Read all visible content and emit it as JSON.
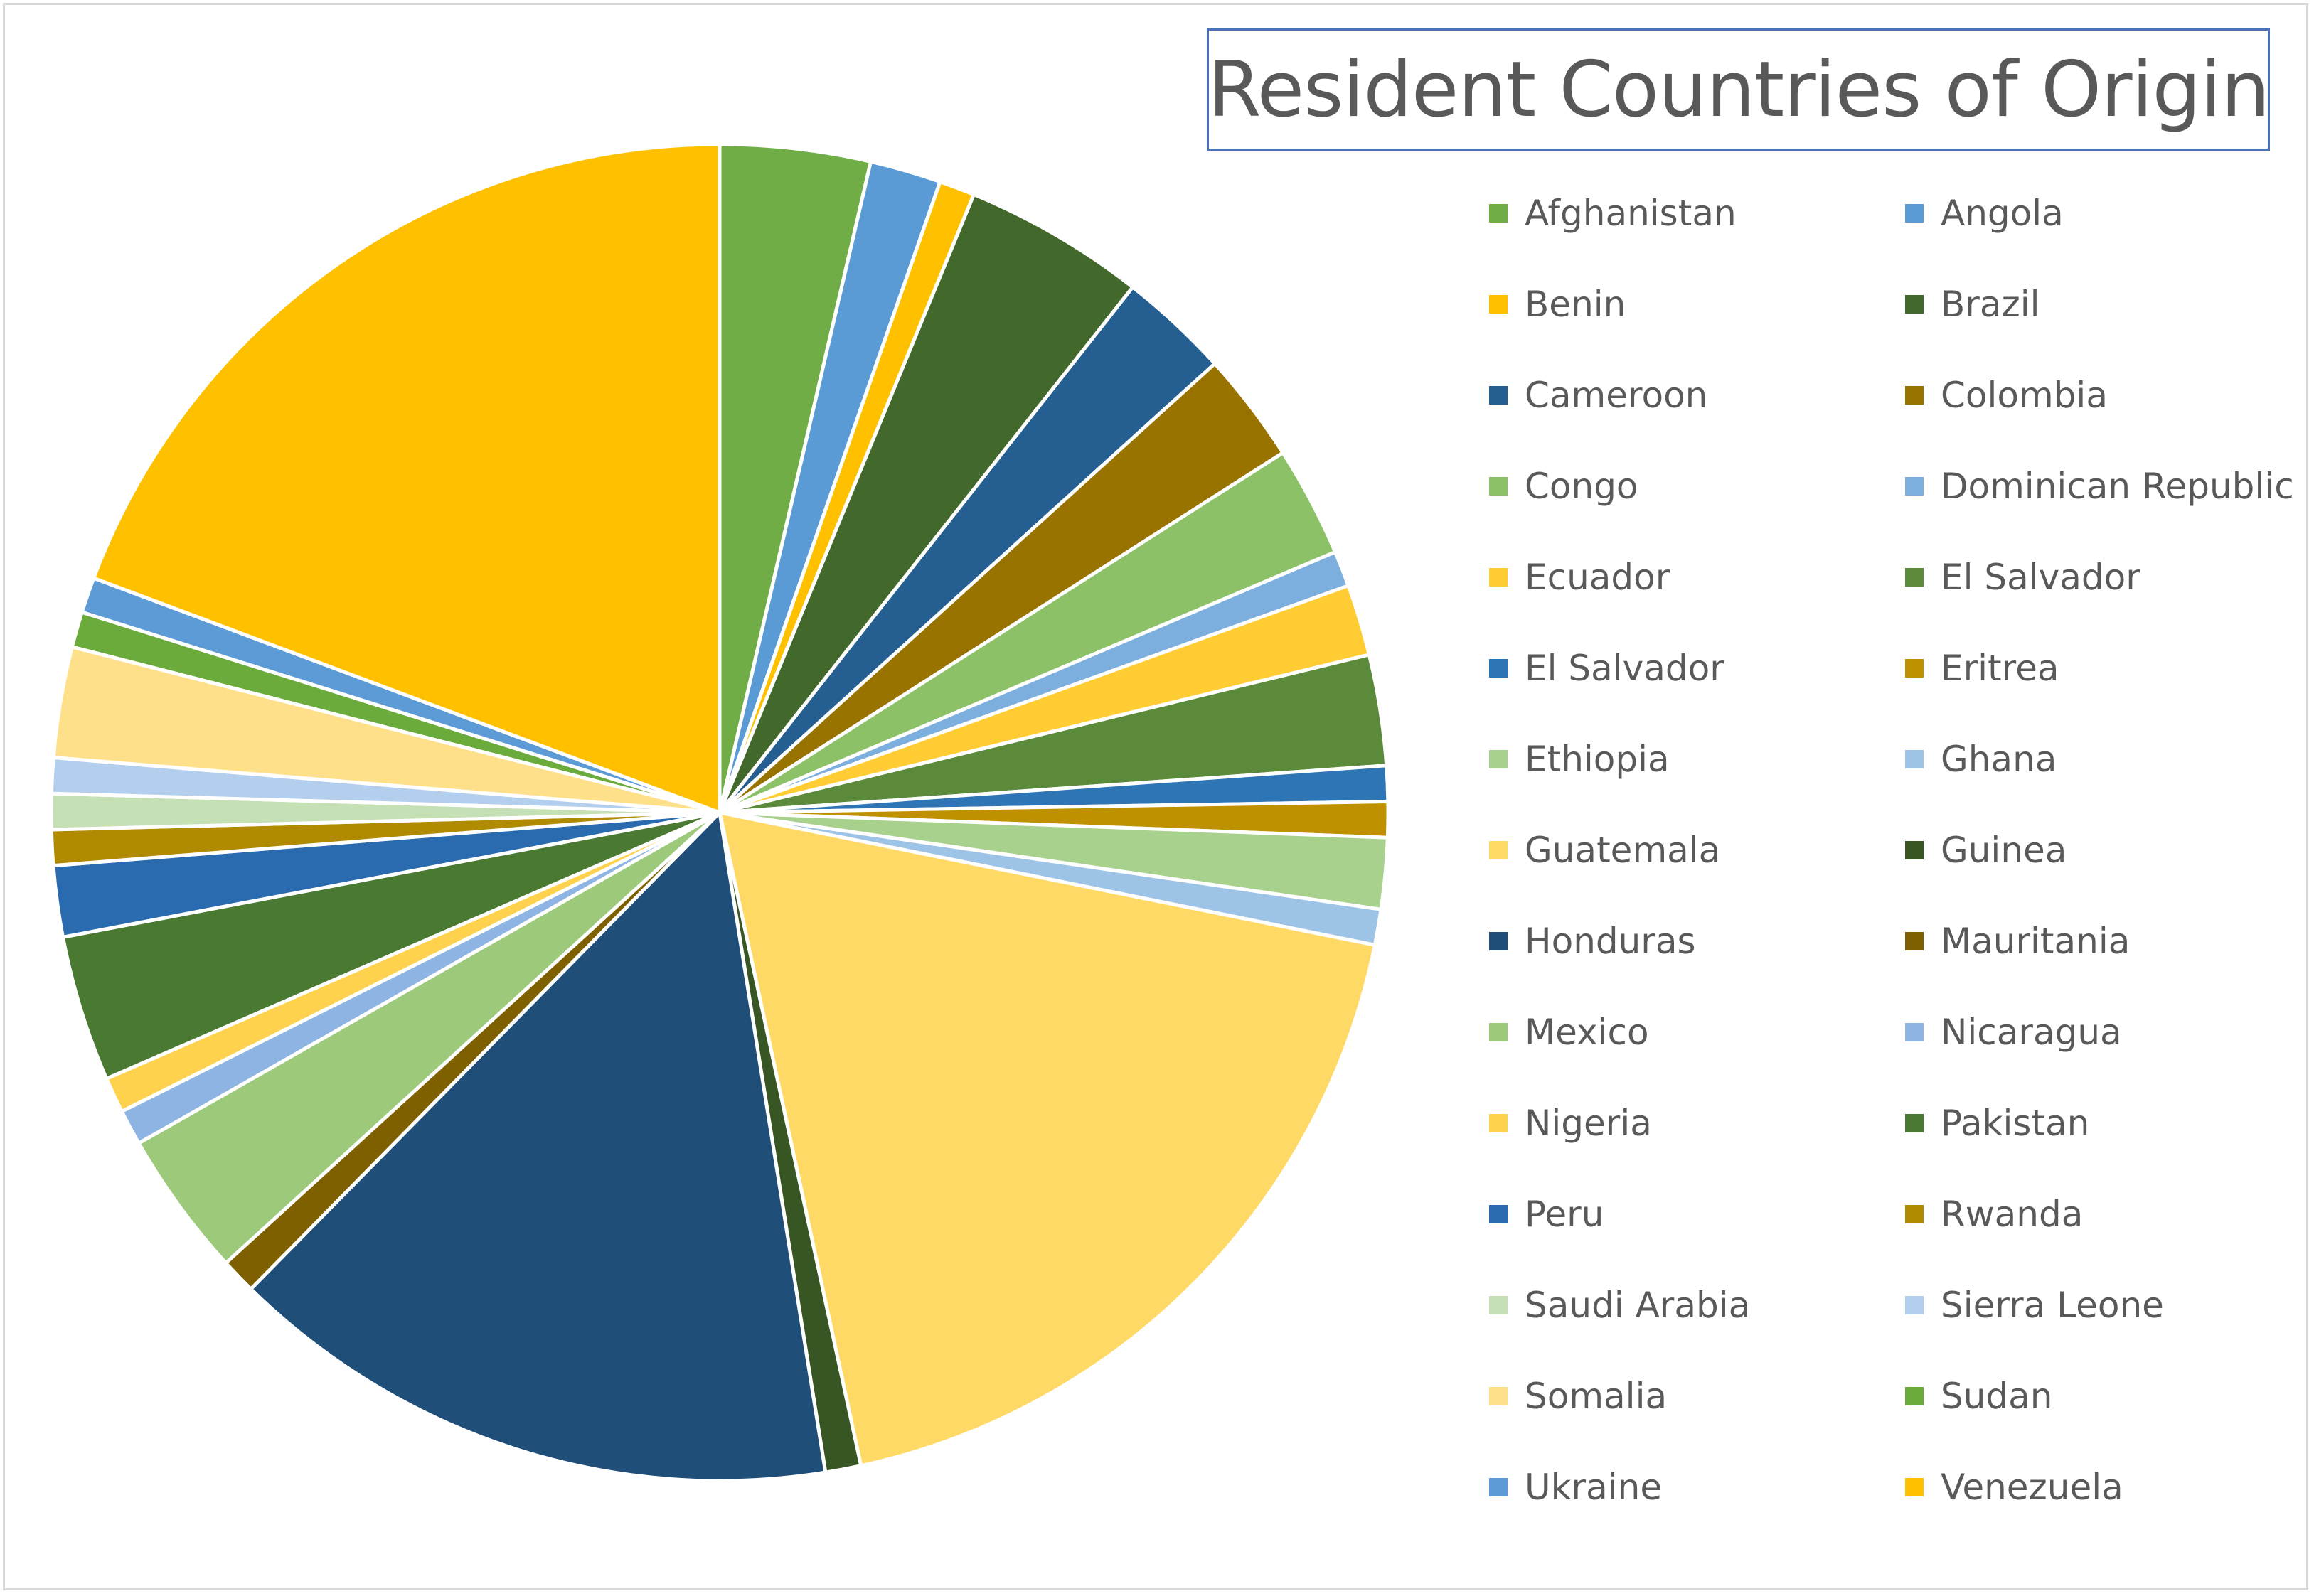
{
  "chart_data": {
    "type": "pie",
    "title": "Resident Countries of Origin",
    "legend_position": "right",
    "slices": [
      {
        "label": "Afghanistan",
        "value": 3.8,
        "color": "#70ad47"
      },
      {
        "label": "Angola",
        "value": 1.8,
        "color": "#5b9bd5"
      },
      {
        "label": "Benin",
        "value": 0.9,
        "color": "#ffc000"
      },
      {
        "label": "Brazil",
        "value": 4.6,
        "color": "#43682b"
      },
      {
        "label": "Cameroon",
        "value": 2.8,
        "color": "#255e91"
      },
      {
        "label": "Colombia",
        "value": 2.8,
        "color": "#997300"
      },
      {
        "label": "Congo",
        "value": 2.8,
        "color": "#8cc168"
      },
      {
        "label": "Dominican Republic",
        "value": 0.9,
        "color": "#7cafdd"
      },
      {
        "label": "Ecuador",
        "value": 1.8,
        "color": "#ffcd33"
      },
      {
        "label": "El Salvador",
        "value": 2.8,
        "color": "#5a8a3a"
      },
      {
        "label": "El Salvador",
        "value": 0.9,
        "color": "#2e75b6"
      },
      {
        "label": "Eritrea",
        "value": 0.9,
        "color": "#bf9000"
      },
      {
        "label": "Ethiopia",
        "value": 1.8,
        "color": "#a9d18e"
      },
      {
        "label": "Ghana",
        "value": 0.9,
        "color": "#9dc3e6"
      },
      {
        "label": "Guatemala",
        "value": 19.3,
        "color": "#ffd966"
      },
      {
        "label": "Guinea",
        "value": 0.9,
        "color": "#375623"
      },
      {
        "label": "Honduras",
        "value": 15.6,
        "color": "#1f4e79"
      },
      {
        "label": "Mauritania",
        "value": 0.9,
        "color": "#7f6000"
      },
      {
        "label": "Mexico",
        "value": 3.7,
        "color": "#9dc97b"
      },
      {
        "label": "Nicaragua",
        "value": 0.9,
        "color": "#8db4e2"
      },
      {
        "label": "Nigeria",
        "value": 0.9,
        "color": "#ffd24d"
      },
      {
        "label": "Pakistan",
        "value": 3.7,
        "color": "#4a7a32"
      },
      {
        "label": "Peru",
        "value": 1.8,
        "color": "#2a6bb0"
      },
      {
        "label": "Rwanda",
        "value": 0.9,
        "color": "#b08a00"
      },
      {
        "label": "Saudi Arabia",
        "value": 0.9,
        "color": "#c5e0b4"
      },
      {
        "label": "Sierra Leone",
        "value": 0.9,
        "color": "#b4cfee"
      },
      {
        "label": "Somalia",
        "value": 2.8,
        "color": "#ffe08a"
      },
      {
        "label": "Sudan",
        "value": 0.9,
        "color": "#6aab3c"
      },
      {
        "label": "Ukraine",
        "value": 0.9,
        "color": "#5c9bd6"
      },
      {
        "label": "Venezuela",
        "value": 20.2,
        "color": "#ffc000"
      }
    ]
  }
}
